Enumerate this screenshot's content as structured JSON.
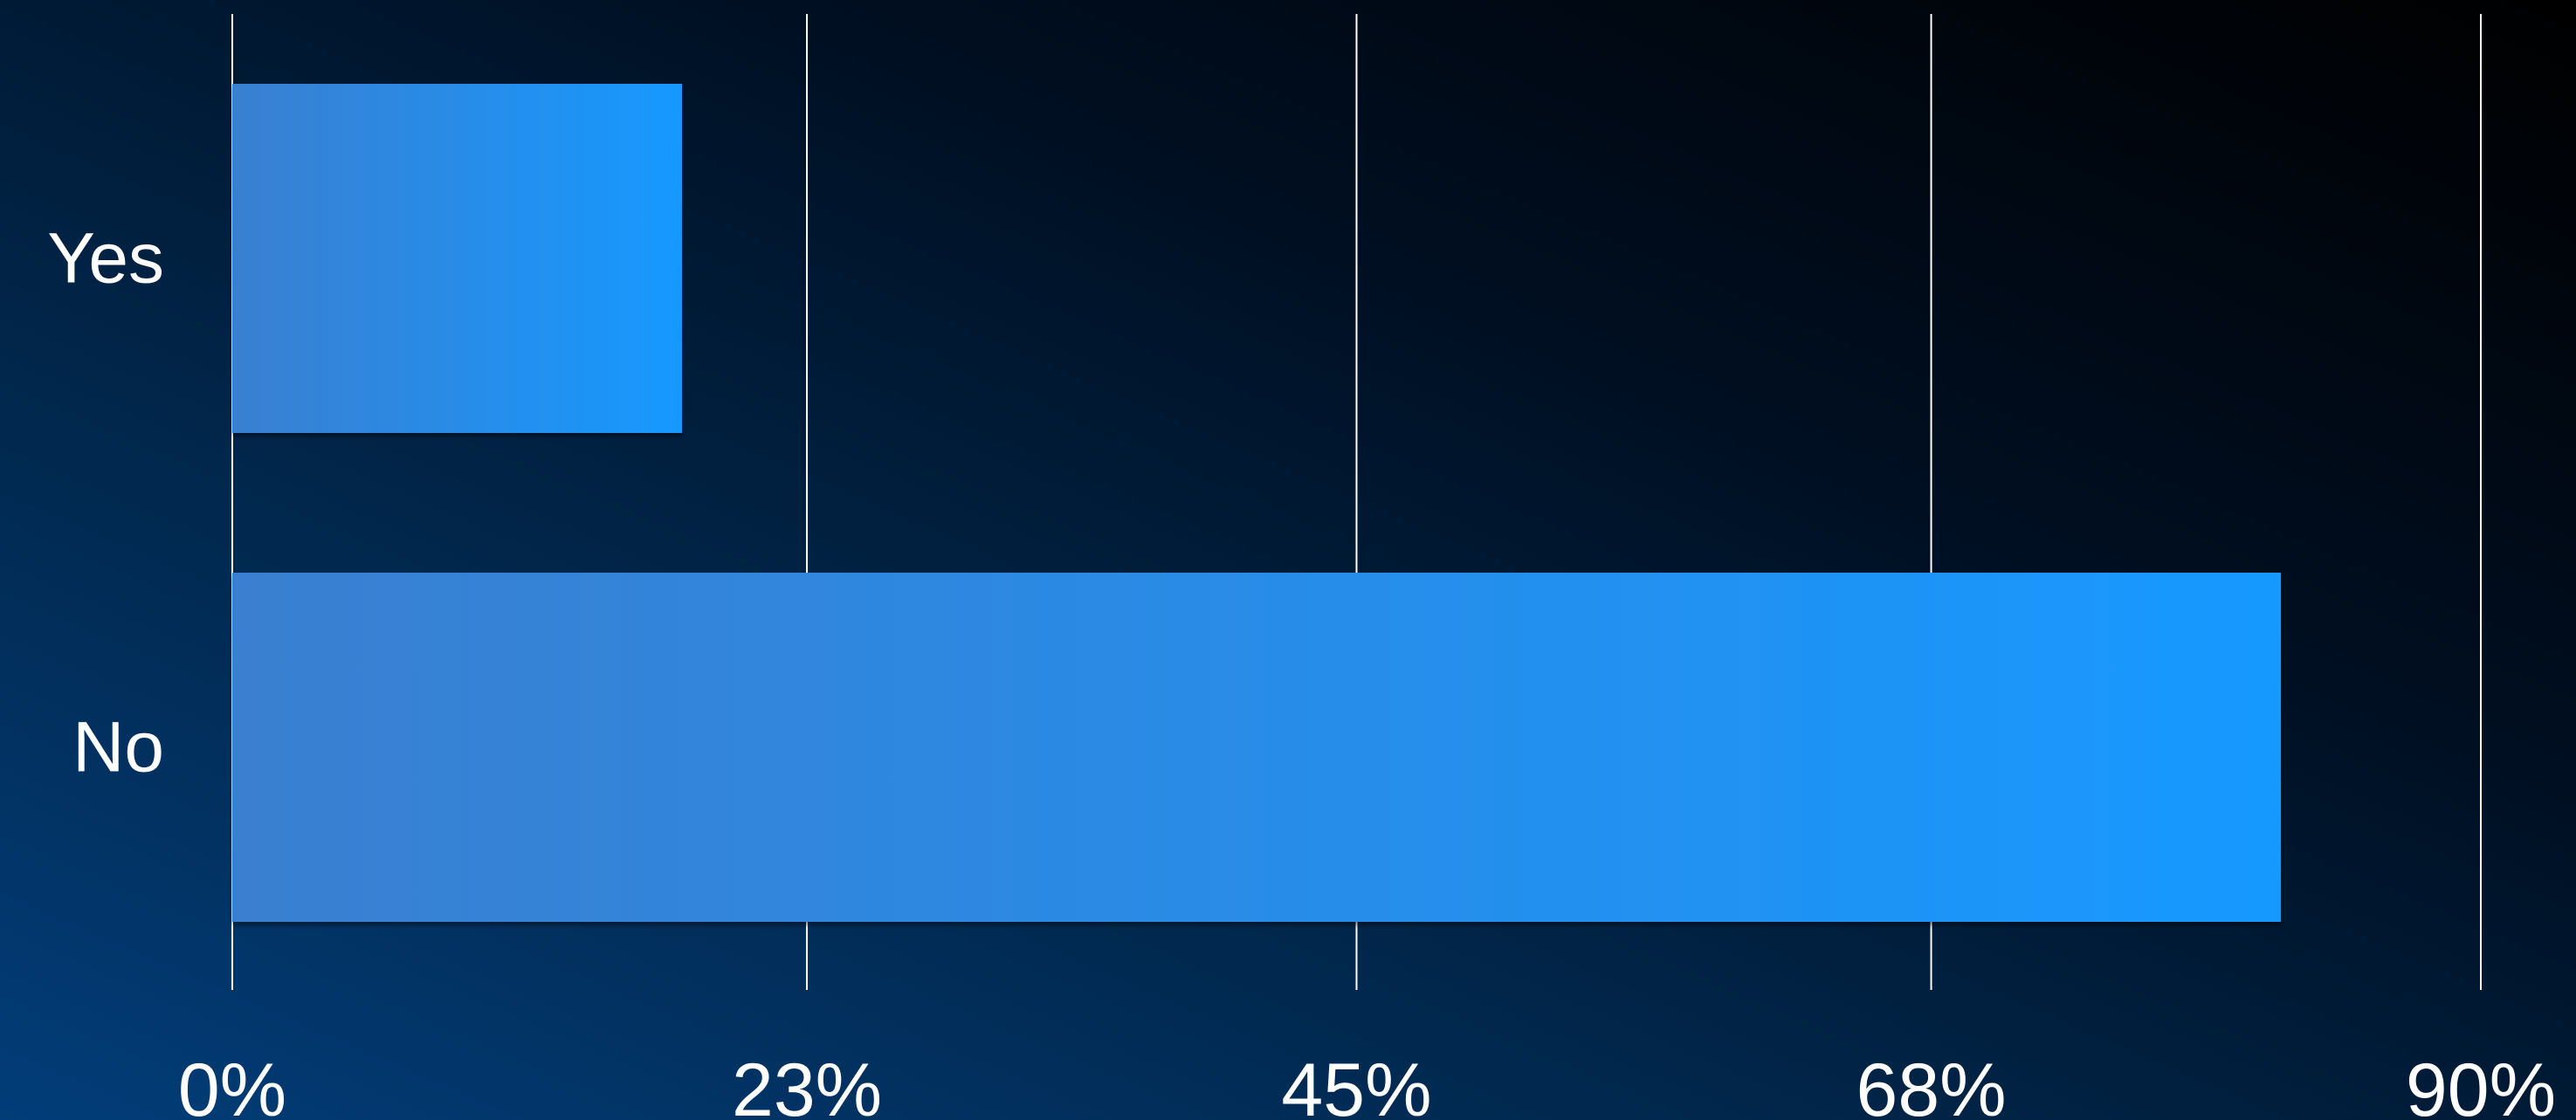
{
  "chart_data": {
    "type": "bar",
    "orientation": "horizontal",
    "categories": [
      "Yes",
      "No"
    ],
    "values": [
      18,
      82
    ],
    "xlim": [
      0,
      90
    ],
    "x_ticks": [
      0,
      23,
      45,
      68,
      90
    ],
    "x_tick_labels": [
      "0%",
      "23%",
      "45%",
      "68%",
      "90%"
    ],
    "grid": "vertical",
    "bar_color_start": "#3a7fd0",
    "bar_color_end": "#1799ff",
    "gridline_color": "#ffffff",
    "text_color": "#ffffff",
    "legend": "none"
  }
}
